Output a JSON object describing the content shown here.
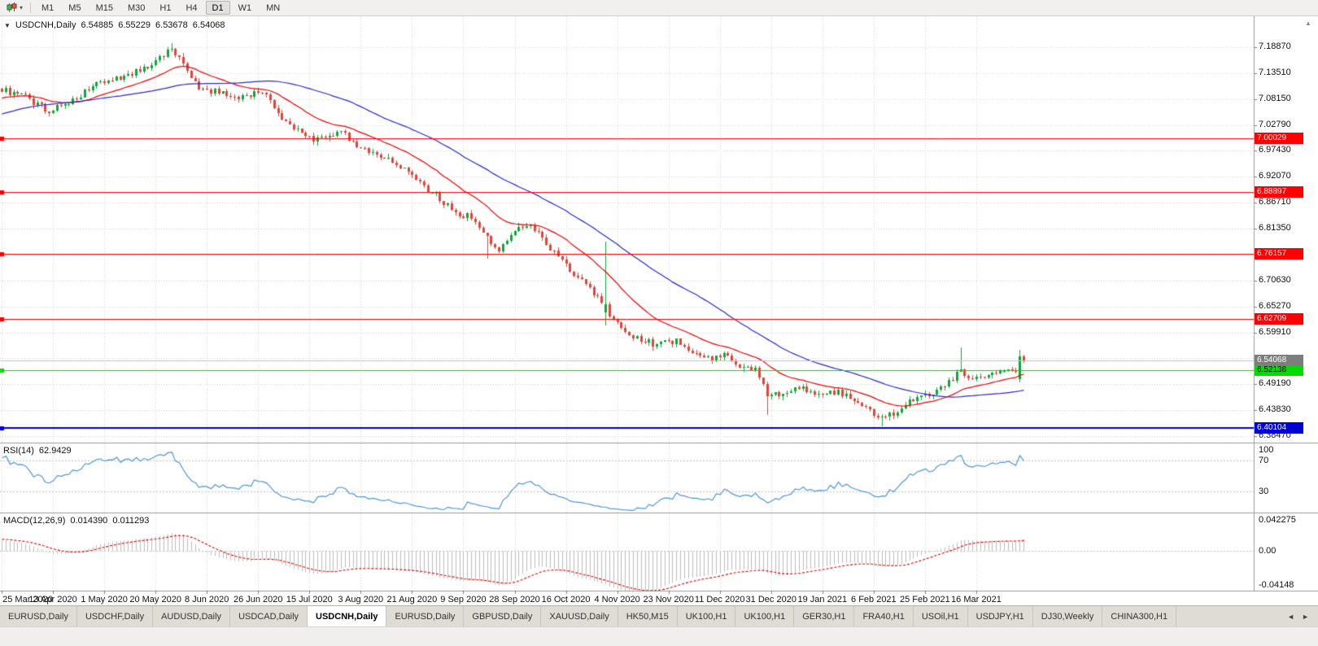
{
  "toolbar": {
    "timeframes": [
      "M1",
      "M5",
      "M15",
      "M30",
      "H1",
      "H4",
      "D1",
      "W1",
      "MN"
    ],
    "active_timeframe": "D1"
  },
  "icons": {
    "chart_type": "candlestick-chart",
    "dropdown_caret": "▾",
    "collapse_triangle": "▼",
    "scroll_up": "▲",
    "tab_scroll_left": "◄",
    "tab_scroll_right": "►"
  },
  "chart": {
    "symbol_timeframe": "USDCNH,Daily",
    "open": "6.54885",
    "high": "6.55229",
    "low": "6.53678",
    "close": "6.54068"
  },
  "price_axis_labels": [
    "7.18870",
    "7.13510",
    "7.08150",
    "7.02790",
    "6.97430",
    "6.92070",
    "6.86710",
    "6.81350",
    "6.75990",
    "6.70630",
    "6.65270",
    "6.59910",
    "6.49190",
    "6.43830",
    "6.38470"
  ],
  "rsi_panel": {
    "name": "RSI(14)",
    "value": "62.9429",
    "scale": [
      {
        "v": 100,
        "label": "100"
      },
      {
        "v": 70,
        "label": "70"
      },
      {
        "v": 30,
        "label": "30"
      }
    ],
    "levels": [
      70,
      30
    ]
  },
  "macd_panel": {
    "name": "MACD(12,26,9)",
    "value_main": "0.014390",
    "value_signal": "0.011293",
    "scale": [
      {
        "v": 0.042275,
        "label": "0.042275"
      },
      {
        "v": 0,
        "label": "0.00"
      },
      {
        "v": -0.04148,
        "label": "-0.04148"
      }
    ]
  },
  "date_axis": [
    "25 Mar 2020",
    "13 Apr 2020",
    "1 May 2020",
    "20 May 2020",
    "8 Jun 2020",
    "26 Jun 2020",
    "15 Jul 2020",
    "3 Aug 2020",
    "21 Aug 2020",
    "9 Sep 2020",
    "28 Sep 2020",
    "16 Oct 2020",
    "4 Nov 2020",
    "23 Nov 2020",
    "11 Dec 2020",
    "31 Dec 2020",
    "19 Jan 2021",
    "6 Feb 2021",
    "25 Feb 2021",
    "16 Mar 2021"
  ],
  "tabs": [
    "EURUSD,Daily",
    "USDCHF,Daily",
    "AUDUSD,Daily",
    "USDCAD,Daily",
    "USDCNH,Daily",
    "EURUSD,Daily",
    "GBPUSD,Daily",
    "XAUUSD,Daily",
    "HK50,M15",
    "UK100,H1",
    "UK100,H1",
    "GER30,H1",
    "FRA40,H1",
    "USOil,H1",
    "USDJPY,H1",
    "DJ30,Weekly",
    "CHINA300,H1"
  ],
  "active_tab_index": 4,
  "chart_data": {
    "type": "candlestick",
    "symbol": "USDCNH",
    "period": "Daily",
    "last_ohlc": {
      "open": 6.54885,
      "high": 6.55229,
      "low": 6.53678,
      "close": 6.54068
    },
    "price_axis": {
      "max": 7.1887,
      "min": 6.3847,
      "step": 0.0536
    },
    "horizontal_lines": [
      {
        "price": 7.00029,
        "label": "7.00029",
        "color": "#ff0000",
        "text": "#ffffff",
        "width": 1
      },
      {
        "price": 6.88897,
        "label": "6.88897",
        "color": "#ff0000",
        "text": "#ffffff",
        "width": 1
      },
      {
        "price": 6.76157,
        "label": "6.76157",
        "color": "#ff0000",
        "text": "#ffffff",
        "width": 1
      },
      {
        "price": 6.62709,
        "label": "6.62709",
        "color": "#ff0000",
        "text": "#ffffff",
        "width": 1
      },
      {
        "price": 6.52138,
        "label": "6.52138",
        "color": "#00dc00",
        "text": "#000000",
        "width": 1
      },
      {
        "price": 6.40104,
        "label": "6.40104",
        "color": "#0000d4",
        "text": "#ffffff",
        "width": 2
      }
    ],
    "bid": {
      "price": 6.54068,
      "label": "6.54068",
      "line_color": "#c2c2c2",
      "badge_color": "#7d7d7d"
    },
    "bars_visible": 260,
    "warmup_bars": 60,
    "bars_per_gridline": 13,
    "seed": 20210322,
    "price_path": [
      [
        -60,
        6.94
      ],
      [
        -40,
        7.01
      ],
      [
        -22,
        7.07
      ],
      [
        -10,
        7.085
      ],
      [
        0,
        7.1
      ],
      [
        6,
        7.085
      ],
      [
        12,
        7.055
      ],
      [
        18,
        7.08
      ],
      [
        26,
        7.12
      ],
      [
        32,
        7.13
      ],
      [
        38,
        7.155
      ],
      [
        43,
        7.185
      ],
      [
        46,
        7.155
      ],
      [
        50,
        7.105
      ],
      [
        56,
        7.095
      ],
      [
        61,
        7.085
      ],
      [
        66,
        7.1
      ],
      [
        72,
        7.03
      ],
      [
        79,
        6.995
      ],
      [
        83,
        7.005
      ],
      [
        86,
        7.012
      ],
      [
        92,
        6.975
      ],
      [
        98,
        6.955
      ],
      [
        103,
        6.93
      ],
      [
        107,
        6.9
      ],
      [
        111,
        6.875
      ],
      [
        115,
        6.845
      ],
      [
        119,
        6.838
      ],
      [
        123,
        6.792
      ],
      [
        126,
        6.768
      ],
      [
        130,
        6.812
      ],
      [
        134,
        6.822
      ],
      [
        140,
        6.762
      ],
      [
        144,
        6.728
      ],
      [
        148,
        6.7
      ],
      [
        151,
        6.668
      ],
      [
        153,
        6.652
      ],
      [
        155,
        6.622
      ],
      [
        160,
        6.592
      ],
      [
        165,
        6.575
      ],
      [
        171,
        6.582
      ],
      [
        175,
        6.562
      ],
      [
        179,
        6.547
      ],
      [
        183,
        6.552
      ],
      [
        187,
        6.532
      ],
      [
        191,
        6.524
      ],
      [
        194,
        6.468
      ],
      [
        198,
        6.472
      ],
      [
        202,
        6.486
      ],
      [
        207,
        6.472
      ],
      [
        212,
        6.476
      ],
      [
        217,
        6.458
      ],
      [
        220,
        6.44
      ],
      [
        223,
        6.421
      ],
      [
        226,
        6.432
      ],
      [
        229,
        6.452
      ],
      [
        232,
        6.465
      ],
      [
        236,
        6.472
      ],
      [
        239,
        6.49
      ],
      [
        243,
        6.522
      ],
      [
        245,
        6.507
      ],
      [
        248,
        6.502
      ],
      [
        251,
        6.51
      ],
      [
        254,
        6.516
      ],
      [
        257,
        6.521
      ],
      [
        258,
        6.53
      ],
      [
        259,
        6.5407
      ]
    ],
    "bar_overrides": [
      {
        "i": 43,
        "h": 7.197
      },
      {
        "i": 123,
        "l": 6.752
      },
      {
        "i": 153,
        "o": 6.641,
        "c": 6.658,
        "h": 6.786,
        "l": 6.613
      },
      {
        "i": 194,
        "l": 6.428
      },
      {
        "i": 223,
        "l": 6.4045,
        "c": 6.425
      },
      {
        "i": 243,
        "h": 6.568
      },
      {
        "i": 258,
        "o": 6.503,
        "c": 6.549,
        "h": 6.563,
        "l": 6.496
      }
    ],
    "ma_fast": {
      "type": "ema",
      "period": 20,
      "color": "#f00000"
    },
    "ma_slow": {
      "type": "sma",
      "period": 50,
      "color": "#2a2ad0"
    },
    "rsi": {
      "period": 14,
      "color": "#4e96d9"
    },
    "macd": {
      "fast": 12,
      "slow": 26,
      "signal": 9,
      "histogram_color": "#bcbcbc",
      "signal_color": "#e00000"
    },
    "candle_colors": {
      "bull": "#0ca83a",
      "bear": "#e2443a"
    },
    "grid_color": "#d6d6d6"
  }
}
